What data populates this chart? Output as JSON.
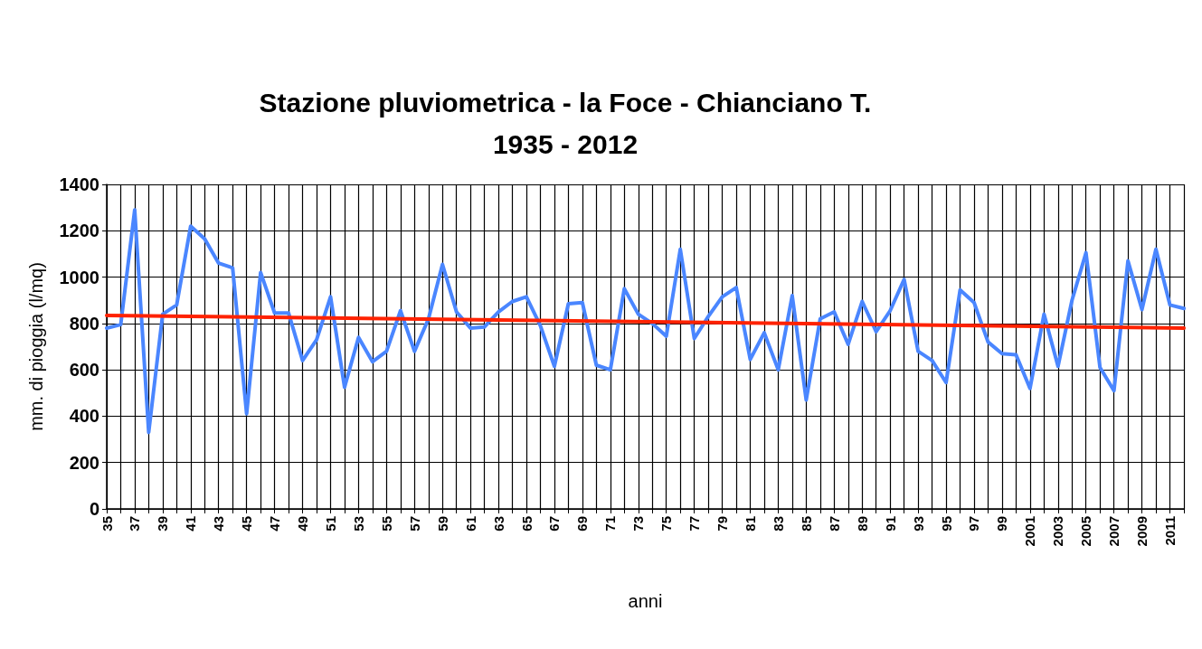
{
  "chart_data": {
    "type": "line",
    "title": "Stazione pluviometrica - la Foce - Chianciano T.\n1935 - 2012",
    "xlabel": "anni",
    "ylabel": "mm. di pioggia (l/mq)",
    "x": [
      1935,
      1936,
      1937,
      1938,
      1939,
      1940,
      1941,
      1942,
      1943,
      1944,
      1945,
      1946,
      1947,
      1948,
      1949,
      1950,
      1951,
      1952,
      1953,
      1954,
      1955,
      1956,
      1957,
      1958,
      1959,
      1960,
      1961,
      1962,
      1963,
      1964,
      1965,
      1966,
      1967,
      1968,
      1969,
      1970,
      1971,
      1972,
      1973,
      1974,
      1975,
      1976,
      1977,
      1978,
      1979,
      1980,
      1981,
      1982,
      1983,
      1984,
      1985,
      1986,
      1987,
      1988,
      1989,
      1990,
      1991,
      1992,
      1993,
      1994,
      1995,
      1996,
      1997,
      1998,
      1999,
      2000,
      2001,
      2002,
      2003,
      2004,
      2005,
      2006,
      2007,
      2008,
      2009,
      2010,
      2011,
      2012
    ],
    "series": [
      {
        "color": "#4a86ff",
        "values": [
          780,
          795,
          1290,
          330,
          840,
          880,
          1220,
          1165,
          1060,
          1040,
          410,
          1020,
          845,
          845,
          640,
          730,
          915,
          525,
          740,
          635,
          680,
          855,
          680,
          820,
          1055,
          850,
          780,
          785,
          850,
          895,
          915,
          790,
          615,
          885,
          890,
          620,
          600,
          950,
          840,
          800,
          745,
          1120,
          735,
          830,
          915,
          955,
          645,
          760,
          600,
          920,
          470,
          820,
          850,
          710,
          895,
          765,
          855,
          990,
          680,
          640,
          545,
          945,
          890,
          720,
          670,
          665,
          520,
          840,
          615,
          900,
          1105,
          610,
          510,
          1070,
          860,
          1120,
          880,
          865
        ]
      },
      {
        "color": "#ff2200",
        "x": [
          1935,
          2012
        ],
        "values": [
          835,
          780
        ]
      }
    ],
    "xlim": [
      1935,
      2012
    ],
    "xticks": [
      {
        "value": 1935,
        "label": "35"
      },
      {
        "value": 1936,
        "label": null
      },
      {
        "value": 1937,
        "label": "37"
      },
      {
        "value": 1938,
        "label": null
      },
      {
        "value": 1939,
        "label": "39"
      },
      {
        "value": 1940,
        "label": null
      },
      {
        "value": 1941,
        "label": "41"
      },
      {
        "value": 1942,
        "label": null
      },
      {
        "value": 1943,
        "label": "43"
      },
      {
        "value": 1944,
        "label": null
      },
      {
        "value": 1945,
        "label": "45"
      },
      {
        "value": 1946,
        "label": null
      },
      {
        "value": 1947,
        "label": "47"
      },
      {
        "value": 1948,
        "label": null
      },
      {
        "value": 1949,
        "label": "49"
      },
      {
        "value": 1950,
        "label": null
      },
      {
        "value": 1951,
        "label": "51"
      },
      {
        "value": 1952,
        "label": null
      },
      {
        "value": 1953,
        "label": "53"
      },
      {
        "value": 1954,
        "label": null
      },
      {
        "value": 1955,
        "label": "55"
      },
      {
        "value": 1956,
        "label": null
      },
      {
        "value": 1957,
        "label": "57"
      },
      {
        "value": 1958,
        "label": null
      },
      {
        "value": 1959,
        "label": "59"
      },
      {
        "value": 1960,
        "label": null
      },
      {
        "value": 1961,
        "label": "61"
      },
      {
        "value": 1962,
        "label": null
      },
      {
        "value": 1963,
        "label": "63"
      },
      {
        "value": 1964,
        "label": null
      },
      {
        "value": 1965,
        "label": "65"
      },
      {
        "value": 1966,
        "label": null
      },
      {
        "value": 1967,
        "label": "67"
      },
      {
        "value": 1968,
        "label": null
      },
      {
        "value": 1969,
        "label": "69"
      },
      {
        "value": 1970,
        "label": null
      },
      {
        "value": 1971,
        "label": "71"
      },
      {
        "value": 1972,
        "label": null
      },
      {
        "value": 1973,
        "label": "73"
      },
      {
        "value": 1974,
        "label": null
      },
      {
        "value": 1975,
        "label": "75"
      },
      {
        "value": 1976,
        "label": null
      },
      {
        "value": 1977,
        "label": "77"
      },
      {
        "value": 1978,
        "label": null
      },
      {
        "value": 1979,
        "label": "79"
      },
      {
        "value": 1980,
        "label": null
      },
      {
        "value": 1981,
        "label": "81"
      },
      {
        "value": 1982,
        "label": null
      },
      {
        "value": 1983,
        "label": "83"
      },
      {
        "value": 1984,
        "label": null
      },
      {
        "value": 1985,
        "label": "85"
      },
      {
        "value": 1986,
        "label": null
      },
      {
        "value": 1987,
        "label": "87"
      },
      {
        "value": 1988,
        "label": null
      },
      {
        "value": 1989,
        "label": "89"
      },
      {
        "value": 1990,
        "label": null
      },
      {
        "value": 1991,
        "label": "91"
      },
      {
        "value": 1992,
        "label": null
      },
      {
        "value": 1993,
        "label": "93"
      },
      {
        "value": 1994,
        "label": null
      },
      {
        "value": 1995,
        "label": "95"
      },
      {
        "value": 1996,
        "label": null
      },
      {
        "value": 1997,
        "label": "97"
      },
      {
        "value": 1998,
        "label": null
      },
      {
        "value": 1999,
        "label": "99"
      },
      {
        "value": 2000,
        "label": null
      },
      {
        "value": 2001,
        "label": "2001"
      },
      {
        "value": 2002,
        "label": null
      },
      {
        "value": 2003,
        "label": "2003"
      },
      {
        "value": 2004,
        "label": null
      },
      {
        "value": 2005,
        "label": "2005"
      },
      {
        "value": 2006,
        "label": null
      },
      {
        "value": 2007,
        "label": "2007"
      },
      {
        "value": 2008,
        "label": null
      },
      {
        "value": 2009,
        "label": "2009"
      },
      {
        "value": 2010,
        "label": null
      },
      {
        "value": 2011,
        "label": "2011"
      },
      {
        "value": 2012,
        "label": null
      }
    ],
    "ylim": [
      0,
      1400
    ],
    "yticks": [
      0,
      200,
      400,
      600,
      800,
      1000,
      1200,
      1400
    ],
    "grid": true,
    "marker": "none",
    "line_style": "solid"
  }
}
